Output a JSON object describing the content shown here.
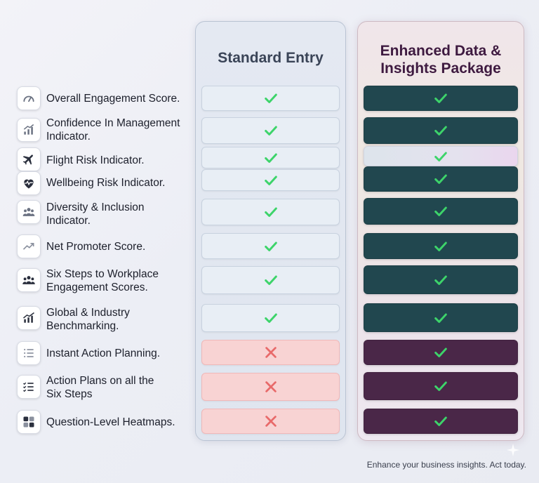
{
  "columns": {
    "standard": {
      "title_line1": "Standard Entry"
    },
    "enhanced": {
      "title_line1": "Enhanced Data &",
      "title_line2": "Insights Package"
    }
  },
  "features": [
    {
      "icon": "gauge-icon",
      "line1": "Overall Engagement Score.",
      "line2": "",
      "standard": "check",
      "enhanced": "check",
      "enhanced_style": "teal"
    },
    {
      "icon": "bar-chart-up-icon",
      "line1": "Confidence In Management",
      "line2": "Indicator.",
      "standard": "check",
      "enhanced": "check",
      "enhanced_style": "teal"
    },
    {
      "icon": "airplane-icon",
      "line1": "Flight Risk Indicator.",
      "line2": "",
      "standard": "check",
      "enhanced": "check",
      "enhanced_style": "light"
    },
    {
      "icon": "heart-pulse-icon",
      "line1": "Wellbeing Risk Indicator.",
      "line2": "",
      "standard": "check",
      "enhanced": "check",
      "enhanced_style": "teal"
    },
    {
      "icon": "people-group-icon",
      "line1": "Diversity & Inclusion",
      "line2": "Indicator.",
      "standard": "check",
      "enhanced": "check",
      "enhanced_style": "teal"
    },
    {
      "icon": "trend-up-icon",
      "line1": "Net Promoter Score.",
      "line2": "",
      "standard": "check",
      "enhanced": "check",
      "enhanced_style": "teal"
    },
    {
      "icon": "team-icon",
      "line1": "Six Steps to Workplace",
      "line2": "Engagement Scores.",
      "standard": "check",
      "enhanced": "check",
      "enhanced_style": "teal"
    },
    {
      "icon": "benchmark-chart-icon",
      "line1": "Global & Industry",
      "line2": "Benchmarking.",
      "standard": "check",
      "enhanced": "check",
      "enhanced_style": "teal"
    },
    {
      "icon": "list-icon",
      "line1": "Instant Action Planning.",
      "line2": "",
      "standard": "cross",
      "enhanced": "check",
      "enhanced_style": "purple"
    },
    {
      "icon": "checklist-icon",
      "line1": "Action Plans on all the",
      "line2": "Six Steps",
      "standard": "cross",
      "enhanced": "check",
      "enhanced_style": "purple"
    },
    {
      "icon": "heatmap-grid-icon",
      "line1": "Question-Level Heatmaps.",
      "line2": "",
      "standard": "cross",
      "enhanced": "check",
      "enhanced_style": "purple"
    }
  ],
  "footer": {
    "text": "Enhance your business insights. Act today."
  },
  "colors": {
    "check": "#3dd46a",
    "cross": "#e86a6a",
    "teal": "#21474f",
    "purple": "#4a2748"
  }
}
